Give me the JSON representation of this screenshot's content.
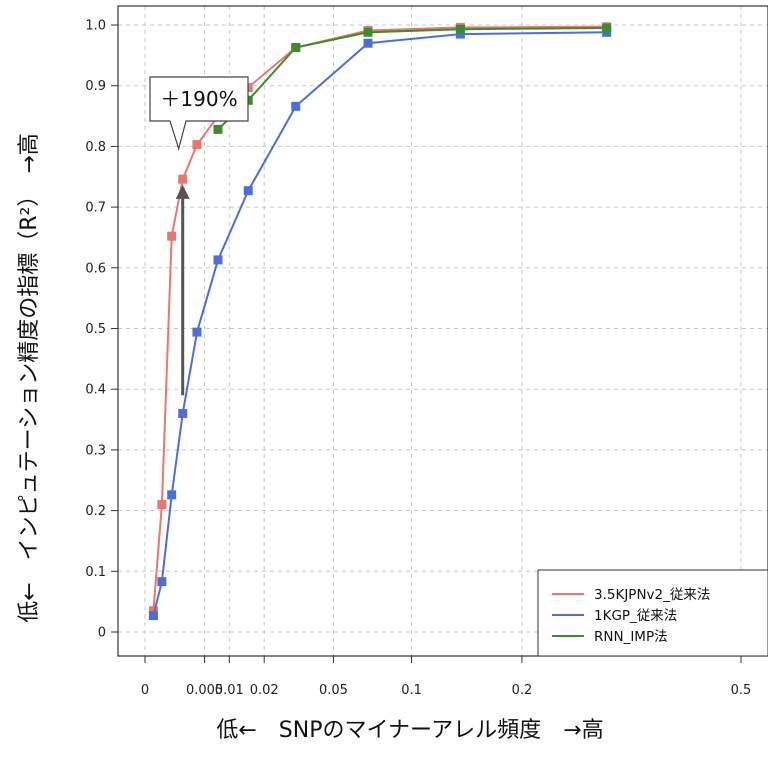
{
  "chart_data": {
    "type": "line",
    "title": "",
    "xlabel": "低←　SNPのマイナーアレル頻度　→高",
    "ylabel": "低←　インピュテーション精度の指標（R²）　→高",
    "x_scale": "sqrt",
    "xlim": [
      0,
      0.5
    ],
    "ylim": [
      0,
      1.0
    ],
    "x_ticks": [
      0,
      0.005,
      0.01,
      0.02,
      0.05,
      0.1,
      0.2,
      0.5
    ],
    "x_tick_labels": [
      "0",
      "0.005",
      "0.01",
      "0.02",
      "0.05",
      "0.1",
      "0.2",
      "0.5"
    ],
    "y_ticks": [
      0,
      0.1,
      0.2,
      0.3,
      0.4,
      0.5,
      0.6,
      0.7,
      0.8,
      0.9,
      1.0
    ],
    "y_tick_labels": [
      "0",
      "0.1",
      "0.2",
      "0.3",
      "0.4",
      "0.5",
      "0.6",
      "0.7",
      "0.8",
      "0.9",
      "1.0"
    ],
    "grid": true,
    "legend_position": "bottom-right",
    "series": [
      {
        "name": "3.5KJPNv2_従来法",
        "color": "#E8776E",
        "points": [
          [
            0.0001,
            0.035
          ],
          [
            0.0004,
            0.21
          ],
          [
            0.001,
            0.652
          ],
          [
            0.002,
            0.746
          ],
          [
            0.0038,
            0.803
          ],
          [
            0.0075,
            0.85
          ],
          [
            0.015,
            0.897
          ],
          [
            0.032,
            0.963
          ],
          [
            0.07,
            0.991
          ],
          [
            0.14,
            0.996
          ],
          [
            0.3,
            0.997
          ]
        ]
      },
      {
        "name": "1KGP_従来法",
        "color": "#4B6FD6",
        "points": [
          [
            0.0001,
            0.027
          ],
          [
            0.0004,
            0.083
          ],
          [
            0.001,
            0.226
          ],
          [
            0.002,
            0.36
          ],
          [
            0.0038,
            0.494
          ],
          [
            0.0075,
            0.613
          ],
          [
            0.015,
            0.727
          ],
          [
            0.032,
            0.866
          ],
          [
            0.07,
            0.97
          ],
          [
            0.14,
            0.985
          ],
          [
            0.3,
            0.988
          ]
        ]
      },
      {
        "name": "RNN_IMP法",
        "color": "#3E8A2E",
        "points": [
          [
            0.0075,
            0.828
          ],
          [
            0.015,
            0.876
          ],
          [
            0.032,
            0.963
          ],
          [
            0.07,
            0.988
          ],
          [
            0.14,
            0.993
          ],
          [
            0.3,
            0.995
          ]
        ]
      }
    ],
    "annotations": [
      {
        "type": "arrow",
        "x": 0.002,
        "y_from": 0.39,
        "y_to": 0.73,
        "color": "#555555"
      },
      {
        "type": "callout",
        "text": "＋190%",
        "x": 0.002,
        "y": 0.75
      }
    ]
  }
}
